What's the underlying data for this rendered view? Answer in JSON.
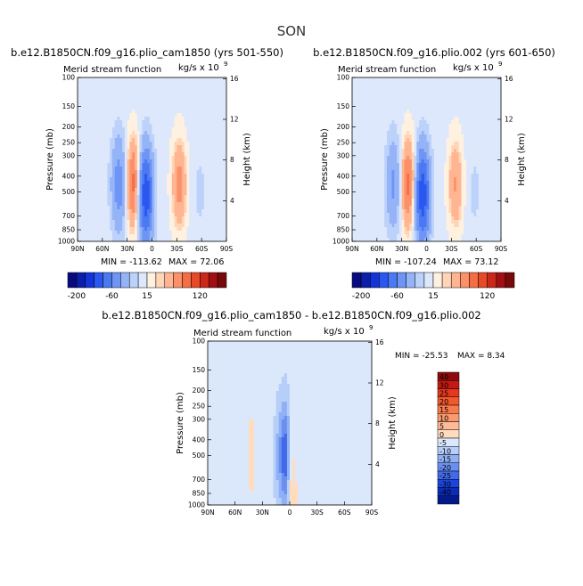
{
  "page": {
    "season": "SON"
  },
  "chart_data": [
    {
      "type": "contour",
      "title": "b.e12.B1850CN.f09_g16.plio_cam1850 (yrs 501-550)",
      "subtitle_left": "Merid stream function",
      "subtitle_right": "kg/s x 10",
      "units_exponent": "9",
      "ylabel": "Pressure (mb)",
      "ylabel_right": "Height (km)",
      "x_ticks": [
        "90N",
        "60N",
        "30N",
        "0",
        "30S",
        "60S",
        "90S"
      ],
      "x_values": [
        90,
        60,
        30,
        0,
        -30,
        -60,
        -90
      ],
      "y_ticks": [
        100,
        150,
        200,
        250,
        300,
        400,
        500,
        700,
        850,
        1000
      ],
      "y_right_ticks": [
        16,
        12,
        8,
        4
      ],
      "ylim": [
        100,
        1000
      ],
      "min_label": "MIN = -113.62",
      "max_label": "MAX =  72.06",
      "min": -113.62,
      "max": 72.06,
      "features": [
        {
          "lat": 8,
          "p": 520,
          "value": -110
        },
        {
          "lat": 40,
          "p": 450,
          "value": -50
        },
        {
          "lat": 22,
          "p": 450,
          "value": 60
        },
        {
          "lat": -33,
          "p": 450,
          "value": 40
        },
        {
          "lat": -58,
          "p": 500,
          "value": -8
        }
      ]
    },
    {
      "type": "contour",
      "title": "b.e12.B1850CN.f09_g16.plio.002 (yrs 601-650)",
      "subtitle_left": "Merid stream function",
      "subtitle_right": "kg/s x 10",
      "units_exponent": "9",
      "ylabel": "Pressure (mb)",
      "ylabel_right": "Height (km)",
      "x_ticks": [
        "90N",
        "60N",
        "30N",
        "0",
        "30S",
        "60S",
        "90S"
      ],
      "x_values": [
        90,
        60,
        30,
        0,
        -30,
        -60,
        -90
      ],
      "y_ticks": [
        100,
        150,
        200,
        250,
        300,
        400,
        500,
        700,
        850,
        1000
      ],
      "y_right_ticks": [
        16,
        12,
        8,
        4
      ],
      "ylim": [
        100,
        1000
      ],
      "min_label": "MIN = -107.24",
      "max_label": "MAX =  73.12",
      "min": -107.24,
      "max": 73.12,
      "features": [
        {
          "lat": 5,
          "p": 520,
          "value": -105
        },
        {
          "lat": 40,
          "p": 450,
          "value": -40
        },
        {
          "lat": 22,
          "p": 450,
          "value": 55
        },
        {
          "lat": -35,
          "p": 450,
          "value": 35
        },
        {
          "lat": -58,
          "p": 500,
          "value": -8
        }
      ],
      "colorbar": {
        "labels": [
          "-200",
          "-60",
          "15",
          "120"
        ],
        "colors": [
          "#0a0a80",
          "#0b1fa8",
          "#1434d8",
          "#2a57ef",
          "#4a79f2",
          "#6e95f5",
          "#95b3f7",
          "#bcd2fa",
          "#dde8fc",
          "#fff1df",
          "#ffd5b8",
          "#ffb592",
          "#fb9168",
          "#f66d45",
          "#e74a26",
          "#c9281a",
          "#a10f12",
          "#760909"
        ]
      }
    },
    {
      "type": "contour",
      "title": "b.e12.B1850CN.f09_g16.plio_cam1850 - b.e12.B1850CN.f09_g16.plio.002",
      "subtitle_left": "Merid stream function",
      "subtitle_right": "kg/s x 10",
      "units_exponent": "9",
      "ylabel": "Pressure (mb)",
      "ylabel_right": "Height (km)",
      "x_ticks": [
        "90N",
        "60N",
        "30N",
        "0",
        "30S",
        "60S",
        "90S"
      ],
      "x_values": [
        90,
        60,
        30,
        0,
        -30,
        -60,
        -90
      ],
      "y_ticks": [
        100,
        150,
        200,
        250,
        300,
        400,
        500,
        700,
        850,
        1000
      ],
      "y_right_ticks": [
        16,
        12,
        8,
        4
      ],
      "ylim": [
        100,
        1000
      ],
      "min_label": "MIN = -25.53",
      "max_label": "MAX =    8.34",
      "min": -25.53,
      "max": 8.34,
      "features": [
        {
          "lat": 5,
          "p": 500,
          "value": -20
        },
        {
          "lat": 12,
          "p": 500,
          "value": -8
        },
        {
          "lat": 42,
          "p": 500,
          "value": 5
        },
        {
          "lat": -3,
          "p": 990,
          "value": 8
        }
      ],
      "colorbar": {
        "labels": [
          "40",
          "30",
          "25",
          "20",
          "15",
          "10",
          "5",
          "0",
          "-5",
          "-10",
          "-15",
          "-20",
          "-25",
          "-30",
          "-40"
        ],
        "colors": [
          "#8e0b0b",
          "#c51a13",
          "#e6381c",
          "#f2582d",
          "#f77a4a",
          "#fa9a6e",
          "#fdbb98",
          "#fedcc0",
          "#dbe8fb",
          "#b6cef8",
          "#8fb0f4",
          "#6a8ff0",
          "#4169e9",
          "#1c45dc",
          "#0b2bb9",
          "#051a8a"
        ]
      }
    }
  ]
}
